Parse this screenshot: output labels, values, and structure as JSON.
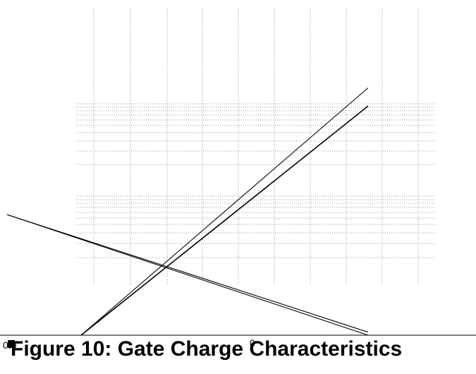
{
  "chart_data": {
    "type": "line",
    "title": "Figure 10: Gate Charge Characteristics",
    "xlabel": "",
    "ylabel": "",
    "grid": true,
    "tick_labels": {
      "left": "0.0",
      "center": "0"
    },
    "series": [
      {
        "values": [
          [
            -1.0,
            0.3
          ],
          [
            0.95,
            -0.1
          ]
        ]
      },
      {
        "values": [
          [
            -1.0,
            0.3
          ],
          [
            0.95,
            -0.09
          ]
        ]
      },
      {
        "values": [
          [
            -0.6,
            -0.1
          ],
          [
            0.95,
            0.72
          ]
        ]
      },
      {
        "values": [
          [
            -0.6,
            -0.1
          ],
          [
            0.95,
            0.66
          ]
        ]
      }
    ],
    "colors": {
      "line": "#000000",
      "grid": "#999999"
    }
  }
}
